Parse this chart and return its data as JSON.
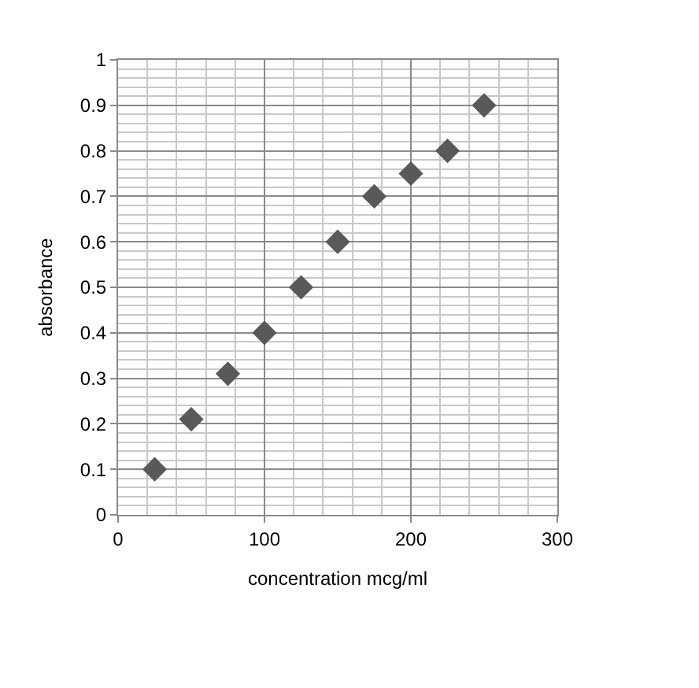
{
  "chart_data": {
    "type": "scatter",
    "xlabel": "concentration mcg/ml",
    "ylabel": "absorbance",
    "x": [
      25,
      50,
      75,
      100,
      125,
      150,
      175,
      200,
      225,
      250
    ],
    "series": [
      {
        "color": "#595959",
        "values": [
          0.1,
          0.21,
          0.31,
          0.4,
          0.5,
          0.6,
          0.7,
          0.75,
          0.8,
          0.9
        ]
      }
    ],
    "xlim": [
      0,
      300
    ],
    "xticks": [
      0,
      100,
      200,
      300
    ],
    "ylim": [
      0,
      1
    ],
    "yticks": [
      0,
      0.1,
      0.2,
      0.3,
      0.4,
      0.5,
      0.6,
      0.7,
      0.8,
      0.9,
      1
    ],
    "grid": true,
    "marker": "diamond",
    "legend": false
  }
}
